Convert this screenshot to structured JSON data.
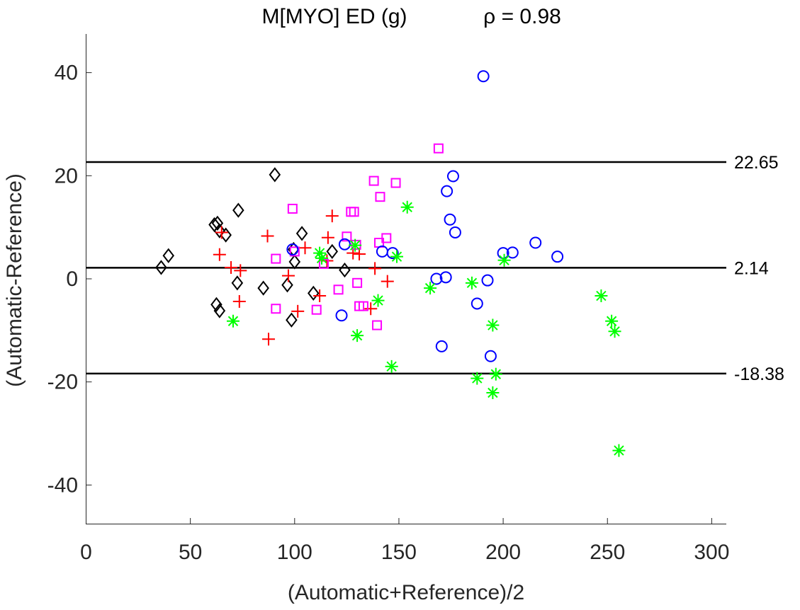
{
  "chart_data": {
    "type": "scatter",
    "title": "M[MYO] ED (g)",
    "rho_label": "ρ = 0.98",
    "xlabel": "(Automatic+Reference)/2",
    "ylabel": "(Automatic-Reference)",
    "xlim": [
      0,
      307
    ],
    "ylim": [
      -47.5,
      47.5
    ],
    "xticks": [
      0,
      50,
      100,
      150,
      200,
      250,
      300
    ],
    "yticks": [
      -40,
      -20,
      0,
      20,
      40
    ],
    "reference_lines": [
      {
        "value": 22.65,
        "label": "22.65"
      },
      {
        "value": 2.14,
        "label": "2.14"
      },
      {
        "value": -18.38,
        "label": "-18.38"
      }
    ],
    "series": [
      {
        "name": "diamond",
        "marker": "diamond",
        "color": "#000000",
        "points": [
          [
            36,
            2.2
          ],
          [
            39.5,
            4.5
          ],
          [
            90.5,
            20.2
          ],
          [
            61.5,
            10.5
          ],
          [
            63,
            10.8
          ],
          [
            64,
            9.3
          ],
          [
            67,
            8.5
          ],
          [
            73,
            13.3
          ],
          [
            62.5,
            -5
          ],
          [
            64,
            -6.2
          ],
          [
            72.5,
            -0.8
          ],
          [
            85,
            -1.8
          ],
          [
            96.5,
            -1.2
          ],
          [
            98.5,
            -8
          ],
          [
            100,
            3.3
          ],
          [
            103.5,
            8.8
          ],
          [
            99.5,
            5.7
          ],
          [
            109,
            -2.8
          ],
          [
            118,
            5.3
          ],
          [
            124,
            1.7
          ]
        ]
      },
      {
        "name": "plus",
        "marker": "plus",
        "color": "#ff0000",
        "points": [
          [
            64,
            4.7
          ],
          [
            65,
            9
          ],
          [
            69.5,
            2.2
          ],
          [
            74,
            1.6
          ],
          [
            73.5,
            -4.4
          ],
          [
            87,
            8.3
          ],
          [
            87.5,
            -11.7
          ],
          [
            97,
            0.6
          ],
          [
            101.5,
            -6.3
          ],
          [
            105,
            6
          ],
          [
            112,
            -3.3
          ],
          [
            116,
            8
          ],
          [
            118,
            12.2
          ],
          [
            115.5,
            3.5
          ],
          [
            128,
            5
          ],
          [
            131,
            4.8
          ],
          [
            136.5,
            -5.8
          ],
          [
            138.5,
            2
          ],
          [
            144.5,
            -0.5
          ]
        ]
      },
      {
        "name": "square",
        "marker": "square",
        "color": "#ff00ff",
        "points": [
          [
            99,
            13.6
          ],
          [
            100,
            5.3
          ],
          [
            91,
            3.9
          ],
          [
            91,
            -5.8
          ],
          [
            110.5,
            -6
          ],
          [
            114,
            2.9
          ],
          [
            121,
            -2.1
          ],
          [
            125,
            8.2
          ],
          [
            127,
            13
          ],
          [
            128.5,
            13
          ],
          [
            129.5,
            6.6
          ],
          [
            130,
            -0.8
          ],
          [
            131,
            -5.3
          ],
          [
            133,
            -5.3
          ],
          [
            138,
            19
          ],
          [
            141,
            15.9
          ],
          [
            140.5,
            7
          ],
          [
            144,
            7.9
          ],
          [
            148.5,
            18.6
          ],
          [
            139.5,
            -9
          ],
          [
            169,
            25.3
          ]
        ]
      },
      {
        "name": "circle",
        "marker": "circle",
        "color": "#0000ff",
        "points": [
          [
            99,
            5.7
          ],
          [
            122.5,
            -7.1
          ],
          [
            124,
            6.7
          ],
          [
            142,
            5.3
          ],
          [
            147,
            5
          ],
          [
            168,
            0
          ],
          [
            170.5,
            -13.1
          ],
          [
            172.5,
            0.3
          ],
          [
            173,
            17
          ],
          [
            174.5,
            11.5
          ],
          [
            176,
            19.9
          ],
          [
            177,
            9
          ],
          [
            187.5,
            -4.8
          ],
          [
            190.5,
            39.3
          ],
          [
            192.5,
            -0.3
          ],
          [
            194,
            -15
          ],
          [
            200,
            5
          ],
          [
            204.5,
            5.1
          ],
          [
            215.5,
            7
          ],
          [
            226,
            4.3
          ]
        ]
      },
      {
        "name": "asterisk",
        "marker": "asterisk",
        "color": "#00ff00",
        "points": [
          [
            70.5,
            -8.2
          ],
          [
            112,
            5
          ],
          [
            113,
            4
          ],
          [
            129,
            6.5
          ],
          [
            130,
            -11
          ],
          [
            140,
            -4.2
          ],
          [
            146.5,
            -17
          ],
          [
            149,
            4.3
          ],
          [
            154,
            13.9
          ],
          [
            165,
            -1.8
          ],
          [
            185,
            -0.8
          ],
          [
            187.5,
            -19.3
          ],
          [
            195,
            -9
          ],
          [
            195,
            -22.1
          ],
          [
            196.5,
            -18.5
          ],
          [
            200.5,
            3.6
          ],
          [
            247,
            -3.3
          ],
          [
            252,
            -8.2
          ],
          [
            253.5,
            -10.2
          ],
          [
            255.5,
            -33.3
          ]
        ]
      }
    ]
  }
}
